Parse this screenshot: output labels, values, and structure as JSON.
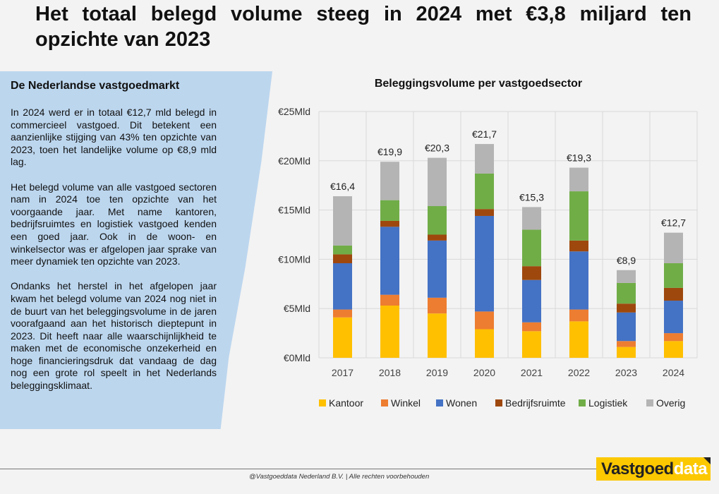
{
  "title": "Het totaal belegd volume steeg in 2024 met €3,8 miljard ten opzichte van 2023",
  "panel": {
    "title": "De Nederlandse vastgoedmarkt",
    "paragraphs": [
      "In 2024 werd er in totaal €12,7 mld belegd in commercieel vastgoed. Dit betekent een aanzienlijke stijging van 43% ten opzichte van 2023, toen het landelijke volume op  €8,9 mld lag.",
      "Het belegd volume van alle vastgoed sectoren nam in 2024 toe ten opzichte van het voorgaande jaar. Met name kantoren, bedrijfsruimtes en logistiek vastgoed kenden een goed jaar. Ook in de woon- en winkelsector was er afgelopen jaar sprake van meer dynamiek ten opzichte van 2023.",
      "Ondanks het herstel in het afgelopen jaar kwam het belegd volume van 2024 nog niet in de buurt van het beleggingsvolume in de jaren voorafgaand aan het historisch dieptepunt in 2023. Dit heeft naar alle waarschijnlijkheid te maken met de economische onzekerheid en hoge financieringsdruk dat vandaag de dag nog een grote rol speelt in het Nederlands beleggingsklimaat."
    ]
  },
  "footer": "@Vastgoeddata Nederland B.V. | Alle rechten voorbehouden",
  "logo": {
    "part1": "Vastgoed",
    "part2": "data"
  },
  "chart_data": {
    "type": "bar",
    "stacked": true,
    "title": "Beleggingsvolume per vastgoedsector",
    "categories": [
      "2017",
      "2018",
      "2019",
      "2020",
      "2021",
      "2022",
      "2023",
      "2024"
    ],
    "ylim": [
      0,
      25
    ],
    "yticks": [
      0,
      5,
      10,
      15,
      20,
      25
    ],
    "ytick_labels": [
      "€0Mld",
      "€5Mld",
      "€10Mld",
      "€15Mld",
      "€20Mld",
      "€25Mld"
    ],
    "grid": true,
    "legend": "bottom",
    "totals": [
      "€16,4",
      "€19,9",
      "€20,3",
      "€21,7",
      "€15,3",
      "€19,3",
      "€8,9",
      "€12,7"
    ],
    "series": [
      {
        "name": "Kantoor",
        "color": "#ffc000",
        "values": [
          4.1,
          5.3,
          4.5,
          2.9,
          2.7,
          3.7,
          1.1,
          1.7
        ]
      },
      {
        "name": "Winkel",
        "color": "#ed7d31",
        "values": [
          0.8,
          1.1,
          1.6,
          1.8,
          0.9,
          1.2,
          0.6,
          0.8
        ]
      },
      {
        "name": "Wonen",
        "color": "#4472c4",
        "values": [
          4.7,
          6.9,
          5.8,
          9.7,
          4.3,
          5.9,
          2.9,
          3.3
        ]
      },
      {
        "name": "Bedrijfsruimte",
        "color": "#9e480e",
        "values": [
          0.9,
          0.6,
          0.6,
          0.7,
          1.4,
          1.1,
          0.9,
          1.3
        ]
      },
      {
        "name": "Logistiek",
        "color": "#70ad47",
        "values": [
          0.9,
          2.1,
          2.9,
          3.6,
          3.7,
          5.0,
          2.1,
          2.5
        ]
      },
      {
        "name": "Overig",
        "color": "#b4b4b4",
        "values": [
          5.0,
          3.9,
          4.9,
          3.0,
          2.3,
          2.4,
          1.3,
          3.1
        ]
      }
    ]
  }
}
